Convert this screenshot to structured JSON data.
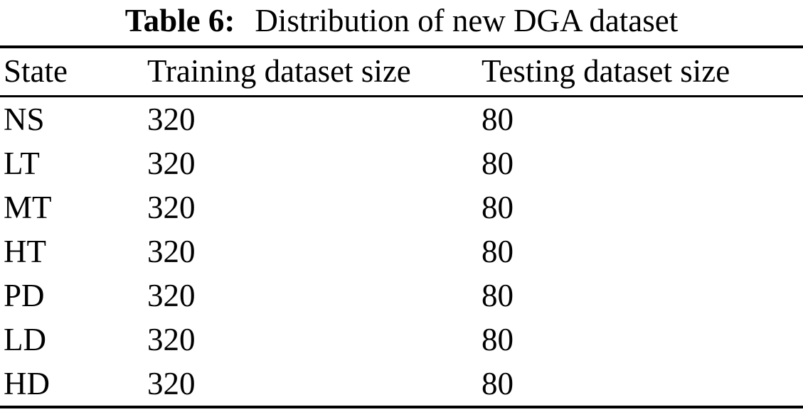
{
  "caption": {
    "label": "Table 6:",
    "text": "Distribution of new DGA dataset"
  },
  "table": {
    "headers": [
      "State",
      "Training dataset size",
      "Testing dataset size"
    ],
    "rows": [
      [
        "NS",
        "320",
        "80"
      ],
      [
        "LT",
        "320",
        "80"
      ],
      [
        "MT",
        "320",
        "80"
      ],
      [
        "HT",
        "320",
        "80"
      ],
      [
        "PD",
        "320",
        "80"
      ],
      [
        "LD",
        "320",
        "80"
      ],
      [
        "HD",
        "320",
        "80"
      ]
    ]
  },
  "colors": {
    "text": "#000000",
    "rules": "#000000",
    "background": "#ffffff"
  }
}
